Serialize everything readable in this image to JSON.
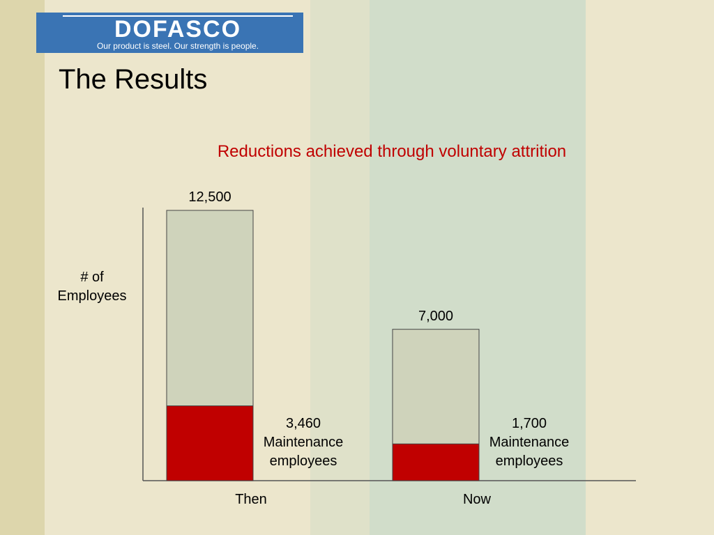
{
  "header": {
    "logo": "DOFASCO",
    "tagline": "Our product is steel. Our strength is people.",
    "title": "The Results"
  },
  "chart_data": {
    "type": "bar",
    "title": "Reductions achieved through voluntary attrition",
    "y_label": "# of Employees",
    "categories": [
      "Then",
      "Now"
    ],
    "totals": {
      "values": [
        12500,
        7000
      ],
      "value_labels": [
        "12,500",
        "7,000"
      ],
      "color": "#cfd3bb"
    },
    "series": [
      {
        "name": "Maintenance employees",
        "color": "#c00000",
        "values": [
          3460,
          1700
        ],
        "value_labels": [
          "3,460",
          "1,700"
        ]
      }
    ],
    "ylim": [
      0,
      12500
    ]
  }
}
